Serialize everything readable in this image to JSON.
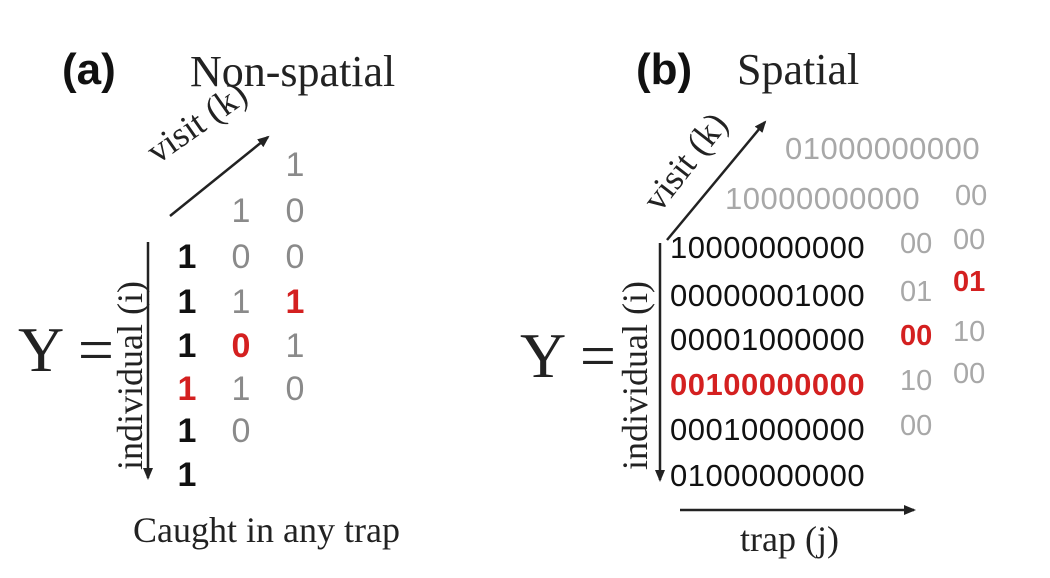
{
  "panel_a": {
    "letter": "(a)",
    "title": "Non-spatial",
    "visit_axis": "visit (k)",
    "individual_axis": "individual (i)",
    "y_symbol": "Y =",
    "caption": "Caught in any trap",
    "rows": [
      {
        "cells": [
          "",
          "",
          "1"
        ],
        "colors": [
          "",
          "",
          "g"
        ]
      },
      {
        "cells": [
          "",
          "1",
          "0"
        ],
        "colors": [
          "",
          "g",
          "g"
        ]
      },
      {
        "cells": [
          "1",
          "0",
          "0"
        ],
        "colors": [
          "k",
          "g",
          "g"
        ]
      },
      {
        "cells": [
          "1",
          "1",
          "1"
        ],
        "colors": [
          "k",
          "g",
          "r"
        ]
      },
      {
        "cells": [
          "1",
          "0",
          "1"
        ],
        "colors": [
          "k",
          "r",
          "g"
        ]
      },
      {
        "cells": [
          "1",
          "1",
          "0"
        ],
        "colors": [
          "r",
          "g",
          "g"
        ]
      },
      {
        "cells": [
          "1",
          "0",
          ""
        ],
        "colors": [
          "k",
          "g",
          ""
        ]
      },
      {
        "cells": [
          "1",
          "",
          ""
        ],
        "colors": [
          "k",
          "",
          ""
        ]
      }
    ]
  },
  "panel_b": {
    "letter": "(b)",
    "title": "Spatial",
    "visit_axis": "visit (k)",
    "individual_axis": "individual (i)",
    "trap_axis": "trap (j)",
    "y_symbol": "Y =",
    "back_row_2": "01000000000",
    "back_row_1": "10000000000",
    "back_row_1_tail": "00",
    "rows": [
      {
        "main": "10000000000",
        "main_color": "d",
        "mid": "00",
        "mid_color": "lg",
        "right": "00",
        "right_color": "lg"
      },
      {
        "main": "00000001000",
        "main_color": "d",
        "mid": "01",
        "mid_color": "lg",
        "right": "01",
        "right_color": "r"
      },
      {
        "main": "00001000000",
        "main_color": "d",
        "mid": "00",
        "mid_color": "r",
        "right": "10",
        "right_color": "lg"
      },
      {
        "main": "00100000000",
        "main_color": "r",
        "mid": "10",
        "mid_color": "lg",
        "right": "00",
        "right_color": "lg"
      },
      {
        "main": "00010000000",
        "main_color": "d",
        "mid": "00",
        "mid_color": "lg",
        "right": "",
        "right_color": "lg"
      },
      {
        "main": "01000000000",
        "main_color": "d",
        "mid": "",
        "mid_color": "lg",
        "right": "",
        "right_color": "lg"
      }
    ]
  }
}
